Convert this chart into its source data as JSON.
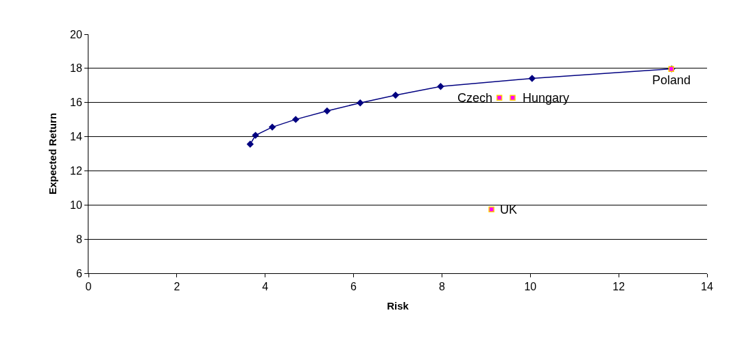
{
  "chart_data": {
    "type": "line",
    "xlabel": "Risk",
    "ylabel": "Expected Return",
    "xlim": [
      0,
      14
    ],
    "xticks": [
      0,
      2,
      4,
      6,
      8,
      10,
      12,
      14
    ],
    "ylim": [
      6,
      20
    ],
    "yticks": [
      6,
      8,
      10,
      12,
      14,
      16,
      18,
      20
    ],
    "grid": "y",
    "series": [
      {
        "color": "#000080",
        "marker": "diamond",
        "x": [
          3.66,
          3.78,
          4.16,
          4.69,
          5.4,
          6.15,
          6.95,
          7.97,
          10.04,
          13.2
        ],
        "values": [
          13.56,
          14.08,
          14.56,
          15.01,
          15.51,
          15.98,
          16.43,
          16.94,
          17.41,
          17.97
        ]
      },
      {
        "type": "scatter",
        "color": "#ff00ff",
        "marker": "square",
        "x": [
          9.3,
          9.6,
          13.19,
          9.12
        ],
        "values": [
          16.28,
          16.28,
          17.96,
          9.74
        ]
      }
    ],
    "annotations": [
      {
        "text": "Czech",
        "x": 9.3,
        "y": 16.28
      },
      {
        "text": "Hungary",
        "x": 9.6,
        "y": 16.28
      },
      {
        "text": "Poland",
        "x": 13.19,
        "y": 17.96
      },
      {
        "text": "UK",
        "x": 9.12,
        "y": 9.74
      }
    ]
  }
}
